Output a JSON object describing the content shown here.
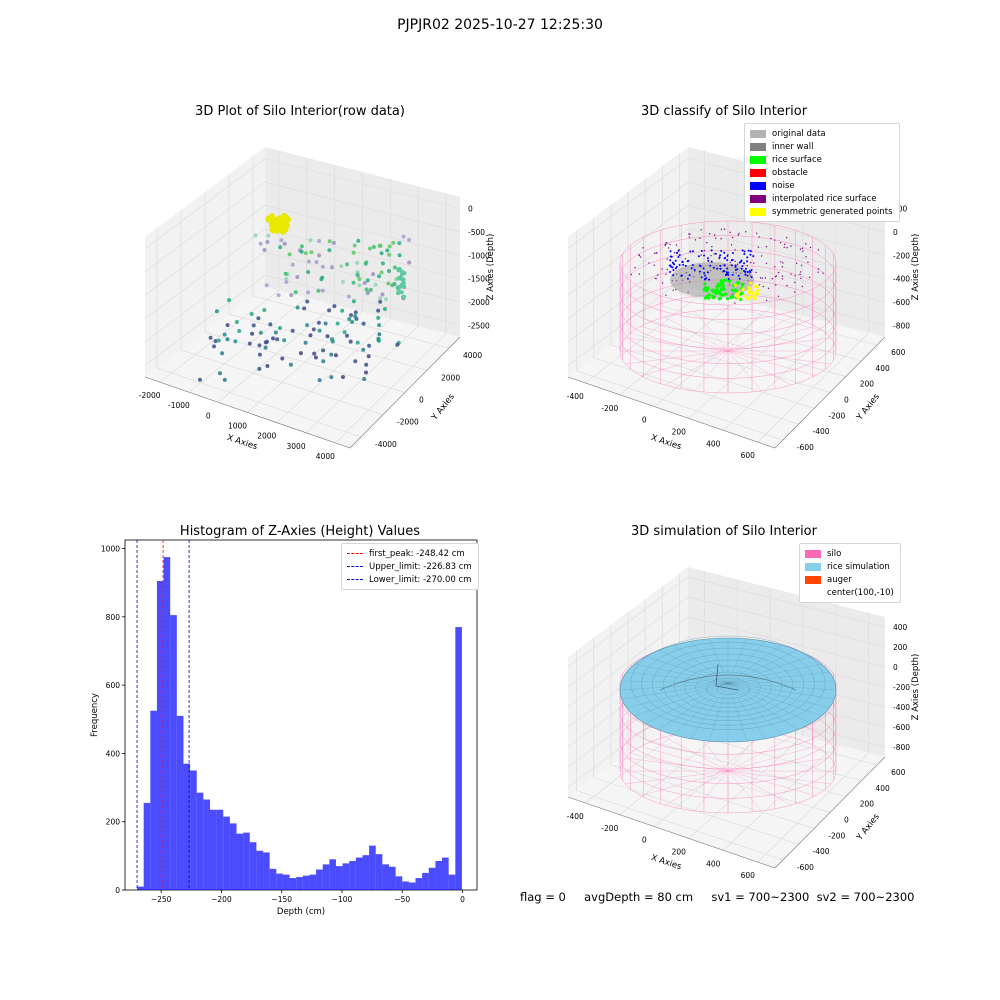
{
  "suptitle": "PJPJR02 2025-10-27 12:25:30",
  "status_text": "flag = 0     avgDepth = 80 cm     sv1 = 700~2300  sv2 = 700~2300",
  "colors": {
    "pane": "#f2f2f2",
    "grid": "#dcdcdc",
    "silo": "#ff69b4",
    "rice_sim": "#87ceeb",
    "auger": "#ff4500",
    "hist": "#0000ff",
    "peak": "#ff0000",
    "limit": "#0000cc"
  },
  "chart_data": [
    {
      "type": "scatter3d",
      "title": "3D Plot of Silo Interior(row data)",
      "xlabel": "X Axies",
      "ylabel": "Y Axies",
      "zlabel": "Z Axies (Depth)",
      "xticks": [
        "-2000",
        "-1000",
        "0",
        "1000",
        "2000",
        "3000",
        "4000"
      ],
      "yticks": [
        "4000",
        "2000",
        "0",
        "-2000",
        "-4000"
      ],
      "zticks": [
        "0",
        "-500",
        "-1000",
        "-1500",
        "-2000",
        "-2500"
      ],
      "colormap": "viridis-by-depth",
      "cluster_label_color": "#e8e800"
    },
    {
      "type": "scatter3d",
      "title": "3D classify of Silo Interior",
      "xlabel": "X Axies",
      "ylabel": "Y Axies",
      "zlabel": "Z Axies (Depth)",
      "xticks": [
        "-400",
        "-200",
        "0",
        "200",
        "400",
        "600"
      ],
      "yticks": [
        "600",
        "400",
        "200",
        "0",
        "-200",
        "-400",
        "-600"
      ],
      "zticks": [
        "200",
        "0",
        "-200",
        "-400",
        "-600",
        "-800"
      ],
      "legend": [
        {
          "label": "original data",
          "color": "#b3b3b3"
        },
        {
          "label": "inner wall",
          "color": "#808080"
        },
        {
          "label": "rice surface",
          "color": "#00ff00"
        },
        {
          "label": "obstacle",
          "color": "#ff0000"
        },
        {
          "label": "noise",
          "color": "#0000ff"
        },
        {
          "label": "interpolated rice surface",
          "color": "#800080"
        },
        {
          "label": "symmetric generated points",
          "color": "#ffff00"
        }
      ]
    },
    {
      "type": "bar",
      "title": "Histogram of Z-Axies (Height) Values",
      "xlabel": "Depth (cm)",
      "ylabel": "Frequency",
      "xlim": [
        -280,
        12
      ],
      "ylim": [
        0,
        1025
      ],
      "xticks": [
        -250,
        -200,
        -150,
        -100,
        -50,
        0
      ],
      "xtick_labels": [
        "−250",
        "−200",
        "−150",
        "−100",
        "−50",
        "0"
      ],
      "yticks": [
        0,
        200,
        400,
        600,
        800,
        1000
      ],
      "bin_start": -270,
      "bin_width": 5.5,
      "values": [
        10,
        255,
        525,
        905,
        975,
        805,
        510,
        370,
        350,
        285,
        265,
        235,
        235,
        215,
        195,
        165,
        168,
        140,
        115,
        110,
        62,
        48,
        45,
        35,
        38,
        42,
        45,
        60,
        75,
        90,
        70,
        78,
        85,
        95,
        102,
        130,
        105,
        75,
        68,
        40,
        25,
        22,
        35,
        50,
        65,
        85,
        95,
        45,
        770
      ],
      "vlines": [
        {
          "label": "first_peak: -248.42 cm",
          "x": -248.42,
          "color": "#ff0000"
        },
        {
          "label": "Upper_limit: -226.83 cm",
          "x": -226.83,
          "color": "#0000cc"
        },
        {
          "label": "Lower_limit: -270.00 cm",
          "x": -270.0,
          "color": "#0000cc"
        }
      ]
    },
    {
      "type": "surface3d",
      "title": "3D simulation of Silo Interior",
      "xlabel": "X Axies",
      "ylabel": "Y Axies",
      "zlabel": "Z Axies (Depth)",
      "xticks": [
        "-400",
        "-200",
        "0",
        "200",
        "400",
        "600"
      ],
      "yticks": [
        "600",
        "400",
        "200",
        "0",
        "-200",
        "-400",
        "-600"
      ],
      "zticks": [
        "400",
        "200",
        "0",
        "-200",
        "-400",
        "-600",
        "-800"
      ],
      "legend": [
        {
          "label": "silo",
          "color": "#ff69b4"
        },
        {
          "label": "rice simulation",
          "color": "#87ceeb"
        },
        {
          "label": "auger",
          "color": "#ff4500"
        },
        {
          "label": "center(100,-10)",
          "color": ""
        }
      ]
    }
  ]
}
